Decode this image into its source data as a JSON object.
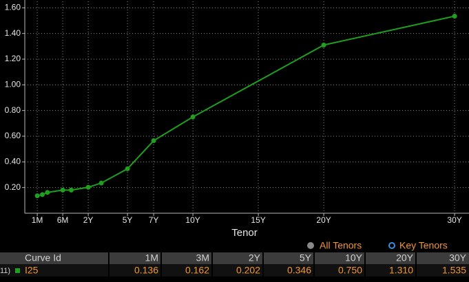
{
  "chart_data": {
    "type": "line",
    "x": [
      0.0833,
      0.1667,
      0.25,
      0.5,
      1,
      2,
      3,
      5,
      7,
      10,
      20,
      30
    ],
    "series": [
      {
        "name": "I25",
        "color": "#1f9e1f",
        "values": [
          0.136,
          0.145,
          0.162,
          0.18,
          0.18,
          0.202,
          0.235,
          0.346,
          0.565,
          0.75,
          1.31,
          1.535
        ]
      }
    ],
    "xlabel": "Tenor",
    "xlim": [
      0,
      31.1
    ],
    "xticks": [
      {
        "value": 0.0833,
        "label": "1M"
      },
      {
        "value": 0.5,
        "label": "6M"
      },
      {
        "value": 2,
        "label": "2Y"
      },
      {
        "value": 5,
        "label": "5Y"
      },
      {
        "value": 7,
        "label": "7Y"
      },
      {
        "value": 10,
        "label": "10Y"
      },
      {
        "value": 15,
        "label": "15Y"
      },
      {
        "value": 20,
        "label": "20Y"
      },
      {
        "value": 30,
        "label": "30Y"
      }
    ],
    "ylim": [
      0,
      1.65
    ],
    "yticks": [
      {
        "value": 0.2,
        "label": "0.20"
      },
      {
        "value": 0.4,
        "label": "0.40"
      },
      {
        "value": 0.6,
        "label": "0.60"
      },
      {
        "value": 0.8,
        "label": "0.80"
      },
      {
        "value": 1.0,
        "label": "1.00"
      },
      {
        "value": 1.2,
        "label": "1.20"
      },
      {
        "value": 1.4,
        "label": "1.40"
      },
      {
        "value": 1.6,
        "label": "1.60"
      }
    ],
    "grid": true
  },
  "table": {
    "legend": [
      "All Tenors",
      "Key Tenors"
    ],
    "header": [
      "Curve Id",
      "1M",
      "3M",
      "2Y",
      "5Y",
      "10Y",
      "20Y",
      "30Y"
    ],
    "rows": [
      [
        "11)",
        "I25",
        "0.136",
        "0.162",
        "0.202",
        "0.346",
        "0.750",
        "1.310",
        "1.535"
      ]
    ]
  }
}
